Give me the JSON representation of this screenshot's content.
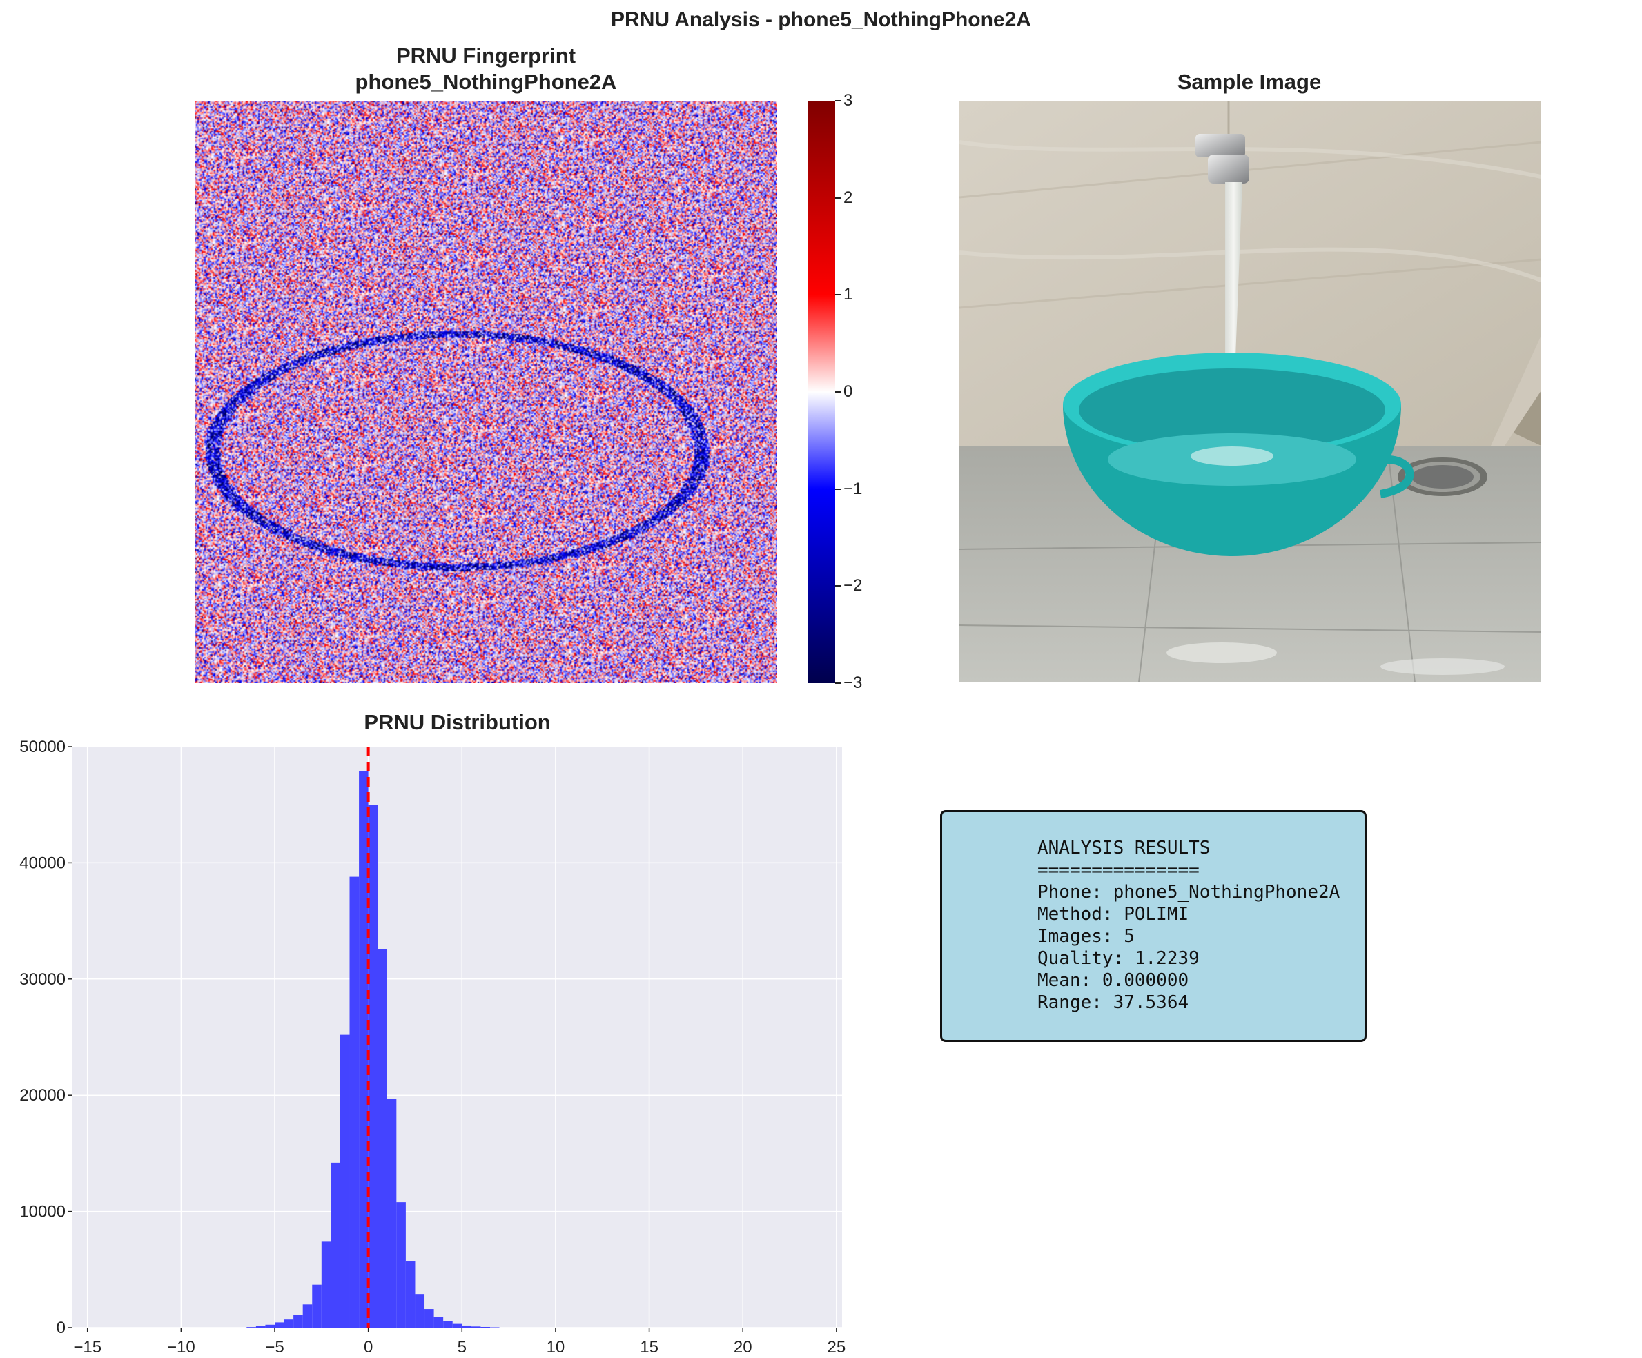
{
  "figure_title": "PRNU Analysis - phone5_NothingPhone2A",
  "fingerprint_panel": {
    "title_line1": "PRNU Fingerprint",
    "title_line2": "phone5_NothingPhone2A",
    "colormap": "seismic",
    "colorbar": {
      "min": -3,
      "max": 3,
      "tick_labels": [
        "3",
        "2",
        "1",
        "0",
        "−1",
        "−2",
        "−3"
      ]
    }
  },
  "sample_panel": {
    "title": "Sample Image"
  },
  "results_box": {
    "lines": [
      "ANALYSIS RESULTS",
      "===============",
      "Phone: phone5_NothingPhone2A",
      "Method: POLIMI",
      "Images: 5",
      "Quality: 1.2239",
      "Mean: 0.000000",
      "Range: 37.5364"
    ],
    "background": "#add8e6"
  },
  "chart_data": {
    "type": "bar",
    "title": "PRNU Distribution",
    "xlabel": "",
    "ylabel": "",
    "xlim": [
      -15.8,
      25.3
    ],
    "ylim": [
      0,
      50000
    ],
    "xticks": [
      -15,
      -10,
      -5,
      0,
      5,
      10,
      15,
      20,
      25
    ],
    "yticks": [
      0,
      10000,
      20000,
      30000,
      40000,
      50000
    ],
    "grid": true,
    "bin_width": 0.5,
    "bins": [
      {
        "x": -6.5,
        "count": 50
      },
      {
        "x": -6.0,
        "count": 120
      },
      {
        "x": -5.5,
        "count": 250
      },
      {
        "x": -5.0,
        "count": 450
      },
      {
        "x": -4.5,
        "count": 700
      },
      {
        "x": -4.0,
        "count": 1100
      },
      {
        "x": -3.5,
        "count": 2000
      },
      {
        "x": -3.0,
        "count": 3700
      },
      {
        "x": -2.5,
        "count": 7400
      },
      {
        "x": -2.0,
        "count": 14200
      },
      {
        "x": -1.5,
        "count": 25200
      },
      {
        "x": -1.0,
        "count": 38800
      },
      {
        "x": -0.5,
        "count": 47900
      },
      {
        "x": 0.0,
        "count": 45000
      },
      {
        "x": 0.5,
        "count": 32600
      },
      {
        "x": 1.0,
        "count": 19700
      },
      {
        "x": 1.5,
        "count": 10800
      },
      {
        "x": 2.0,
        "count": 5700
      },
      {
        "x": 2.5,
        "count": 2900
      },
      {
        "x": 3.0,
        "count": 1600
      },
      {
        "x": 3.5,
        "count": 900
      },
      {
        "x": 4.0,
        "count": 550
      },
      {
        "x": 4.5,
        "count": 320
      },
      {
        "x": 5.0,
        "count": 180
      },
      {
        "x": 5.5,
        "count": 100
      },
      {
        "x": 6.0,
        "count": 60
      },
      {
        "x": 6.5,
        "count": 30
      }
    ],
    "mean_line": 0,
    "bar_color": "#4444ff",
    "mean_line_color": "#ff0000",
    "background": "#eaeaf2"
  }
}
